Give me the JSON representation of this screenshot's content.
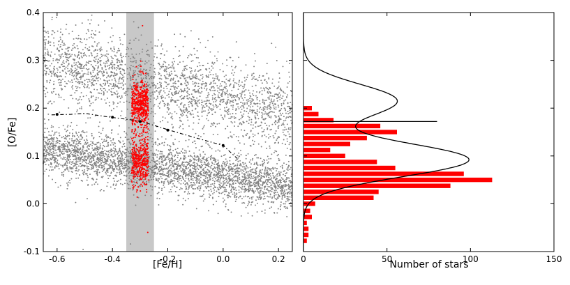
{
  "chart_data": [
    {
      "type": "scatter",
      "panel": "left",
      "xlabel": "[Fe/H]",
      "ylabel": "[O/Fe]",
      "xlim": [
        -0.65,
        0.25
      ],
      "ylim": [
        -0.1,
        0.4
      ],
      "x_ticks": [
        "-0.6",
        "-0.4",
        "-0.2",
        "0.0",
        "0.2"
      ],
      "y_ticks": [
        "-0.1",
        "0.0",
        "0.1",
        "0.2",
        "0.3",
        "0.4"
      ],
      "highlight_band": {
        "x_from": -0.35,
        "x_to": -0.25,
        "color": "#c8c8c8"
      },
      "series": [
        {
          "color": "#808080",
          "marker": "dot",
          "description_populations": [
            {
              "points": 2400,
              "x_range": [
                -0.65,
                0.25
              ],
              "y_center_at_x_-0.65": 0.3,
              "y_center_at_x_0.25": 0.19,
              "y_sd": 0.04
            },
            {
              "points": 3300,
              "x_range": [
                -0.65,
                0.25
              ],
              "y_center_at_x_-0.65": 0.115,
              "y_center_at_x_0.25": 0.035,
              "y_sd": 0.025
            }
          ]
        },
        {
          "color": "#ff0000",
          "marker": "dot",
          "description_populations": [
            {
              "points": 480,
              "x_range": [
                -0.33,
                -0.27
              ],
              "y_center": 0.21,
              "y_sd": 0.025
            },
            {
              "points": 380,
              "x_range": [
                -0.33,
                -0.27
              ],
              "y_center": 0.09,
              "y_sd": 0.025
            }
          ]
        },
        {
          "style": "dashed-line-with-markers",
          "color": "#000000",
          "x": [
            -0.62,
            -0.55,
            -0.5,
            -0.42,
            -0.3,
            -0.2,
            -0.1,
            0.0,
            0.05
          ],
          "y": [
            0.186,
            0.187,
            0.189,
            0.182,
            0.173,
            0.155,
            0.138,
            0.122,
            0.095
          ],
          "marker_x": [
            -0.6,
            -0.4,
            -0.3,
            -0.2,
            0.0
          ],
          "marker_y": [
            0.187,
            0.181,
            0.172,
            0.154,
            0.122
          ]
        }
      ]
    },
    {
      "type": "bar",
      "orientation": "horizontal",
      "panel": "right",
      "xlabel": "Number of stars",
      "xlim": [
        0,
        150
      ],
      "ylim": [
        -0.1,
        0.4
      ],
      "x_ticks": [
        "0",
        "50",
        "100",
        "150"
      ],
      "bar_color": "#ff0000",
      "bin_width": 0.0125,
      "bin_centers": [
        -0.0775,
        -0.065,
        -0.0525,
        -0.04,
        -0.0275,
        -0.015,
        0.0,
        0.0125,
        0.025,
        0.0375,
        0.05,
        0.0625,
        0.075,
        0.0875,
        0.1,
        0.1125,
        0.125,
        0.1375,
        0.15,
        0.1625,
        0.175,
        0.1875,
        0.2,
        0.2125,
        0.225,
        0.2375,
        0.25,
        0.2625,
        0.275,
        0.2875,
        0.3
      ],
      "values": [
        2,
        3,
        3,
        2,
        5,
        4,
        7,
        42,
        45,
        88,
        113,
        96,
        55,
        44,
        25,
        16,
        28,
        38,
        56,
        46,
        18,
        9,
        5
      ],
      "values_note": "values listed for bins starting at the bottom (-0.0775) upward; the remaining bins above 0.2 are empty",
      "fit_curve": {
        "color": "#000000",
        "components": [
          {
            "mean": 0.092,
            "sd": 0.035,
            "amplitude": 99
          },
          {
            "mean": 0.215,
            "sd": 0.035,
            "amplitude": 56
          }
        ]
      },
      "reference_line": {
        "y": 0.172,
        "x_from": 0,
        "x_to": 80,
        "color": "#000000"
      }
    }
  ]
}
